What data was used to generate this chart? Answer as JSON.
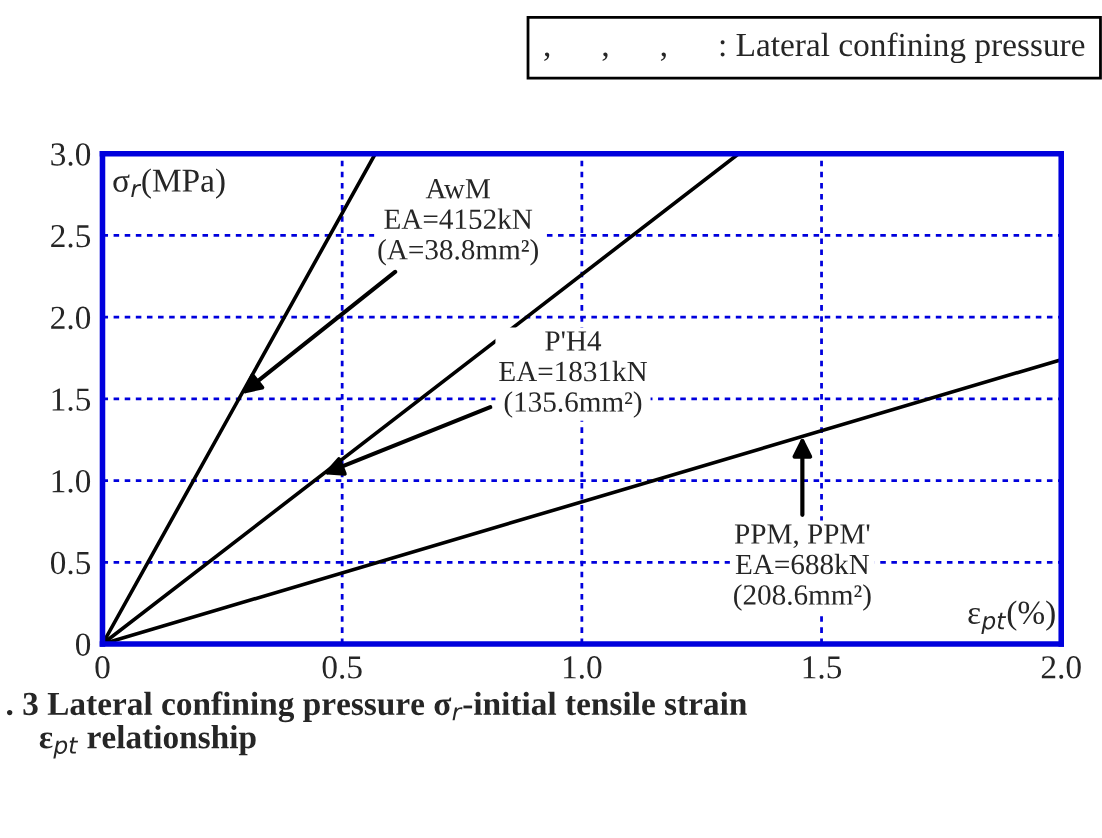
{
  "chart_data": {
    "type": "line",
    "title": ". 3 Lateral confining pressure σ$_{r}$-initial tensile strain\n    ε$_{pt}$ relationship",
    "xlabel": "ε$_{pt}$(%)",
    "ylabel": "σ$_{r}$(MPa)",
    "series": [
      {
        "x": [
          0,
          0.569
        ],
        "values": [
          0,
          3.0
        ],
        "color": "#000000"
      },
      {
        "x": [
          0,
          1.327
        ],
        "values": [
          0,
          3.0
        ],
        "color": "#000000"
      },
      {
        "x": [
          0,
          2.0
        ],
        "values": [
          0,
          1.74
        ],
        "color": "#000000"
      }
    ],
    "annotations": [
      ",      ,      ,      : Lateral confining pressure",
      {
        "text": "AwM\nEA=4152kN\n(A=38.8mm²)",
        "x": 0.29,
        "y": 1.53
      },
      {
        "text": "P'H4\nEA=1831kN\n(135.6mm²)",
        "x": 0.46,
        "y": 1.04
      },
      {
        "text": "PPM, PPM'\nEA=688kN\n(208.6mm²)",
        "x": 1.46,
        "y": 1.27
      }
    ],
    "xlim": [
      0,
      2.0
    ],
    "ylim": [
      0,
      3.0
    ],
    "xticks": [
      0,
      0.5,
      {
        "value": 1.0,
        "label": "1.0"
      },
      1.5,
      {
        "value": 2.0,
        "label": "2.0"
      }
    ],
    "yticks": [
      0,
      0.5,
      {
        "value": 1.0,
        "label": "1.0"
      },
      1.5,
      {
        "value": 2.0,
        "label": "2.0"
      },
      2.5,
      {
        "value": 3.0,
        "label": "3.0"
      }
    ],
    "grid": true,
    "legend": false,
    "marker": "none",
    "line_style": "solid"
  }
}
